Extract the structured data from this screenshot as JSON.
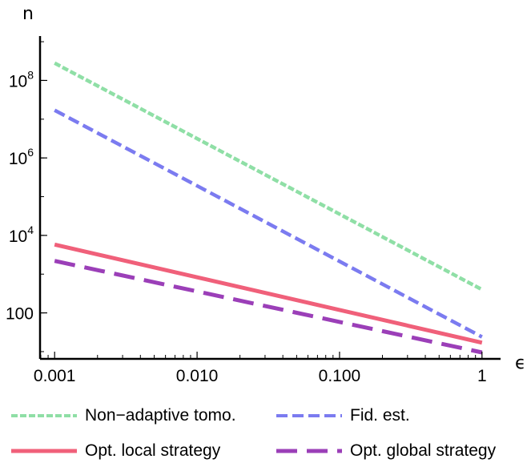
{
  "chart_data": {
    "type": "line",
    "xlabel": "ϵ",
    "ylabel": "n",
    "x_scale": "log",
    "y_scale": "log",
    "xlim": [
      0.00079,
      1.35
    ],
    "ylim": [
      6.5,
      1400000000.0
    ],
    "x_ticks": [
      {
        "value": 0.001,
        "label": "0.001"
      },
      {
        "value": 0.01,
        "label": "0.010"
      },
      {
        "value": 0.1,
        "label": "0.100"
      },
      {
        "value": 1,
        "label": "1"
      }
    ],
    "y_ticks": [
      {
        "value": 100,
        "base": "100",
        "exp": ""
      },
      {
        "value": 10000,
        "base": "10",
        "exp": "4"
      },
      {
        "value": 1000000,
        "base": "10",
        "exp": "6"
      },
      {
        "value": 100000000,
        "base": "10",
        "exp": "8"
      }
    ],
    "grid": false,
    "legend_position": "bottom",
    "series": [
      {
        "name": "Non-adaptive tomo.",
        "x": [
          0.001,
          1
        ],
        "y": [
          280000000,
          400
        ],
        "color": "#8fdfa6",
        "style": "dotted"
      },
      {
        "name": "Fid. est.",
        "x": [
          0.001,
          1
        ],
        "y": [
          17000000,
          24
        ],
        "color": "#7b7bf0",
        "style": "short-dashed"
      },
      {
        "name": "Opt. local strategy",
        "x": [
          0.001,
          1
        ],
        "y": [
          5800,
          17
        ],
        "color": "#f0607a",
        "style": "solid"
      },
      {
        "name": "Opt. global strategy",
        "x": [
          0.001,
          1
        ],
        "y": [
          2200,
          9.5
        ],
        "color": "#9b3fb8",
        "style": "long-dashed"
      }
    ]
  },
  "legend": [
    {
      "label": "Non−adaptive tomo."
    },
    {
      "label": "Fid. est."
    },
    {
      "label": "Opt. local strategy"
    },
    {
      "label": "Opt. global strategy"
    }
  ]
}
